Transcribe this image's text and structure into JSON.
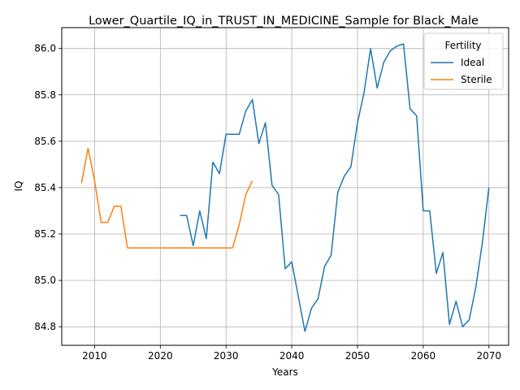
{
  "chart_data": {
    "type": "line",
    "title": "Lower_Quartile_IQ_in_TRUST_IN_MEDICINE_Sample for Black_Male",
    "xlabel": "Years",
    "ylabel": "IQ",
    "xlim": [
      2005,
      2073
    ],
    "ylim": [
      84.72,
      86.09
    ],
    "xticks": [
      2010,
      2020,
      2030,
      2040,
      2050,
      2060,
      2070
    ],
    "yticks": [
      84.8,
      85.0,
      85.2,
      85.4,
      85.6,
      85.8,
      86.0
    ],
    "xtick_labels": [
      "2010",
      "2020",
      "2030",
      "2040",
      "2050",
      "2060",
      "2070"
    ],
    "ytick_labels": [
      "84.8",
      "85.0",
      "85.2",
      "85.4",
      "85.6",
      "85.8",
      "86.0"
    ],
    "grid": true,
    "legend": {
      "title": "Fertility",
      "placement": "top-right"
    },
    "series": [
      {
        "name": "Ideal",
        "color": "#1f77b4",
        "x": [
          2023,
          2024,
          2025,
          2026,
          2027,
          2028,
          2029,
          2030,
          2031,
          2032,
          2033,
          2034,
          2035,
          2036,
          2037,
          2038,
          2039,
          2040,
          2041,
          2042,
          2043,
          2044,
          2045,
          2046,
          2047,
          2048,
          2049,
          2050,
          2051,
          2052,
          2053,
          2054,
          2055,
          2056,
          2057,
          2058,
          2059,
          2060,
          2061,
          2062,
          2063,
          2064,
          2065,
          2066,
          2067,
          2068,
          2069,
          2070
        ],
        "y": [
          85.28,
          85.28,
          85.15,
          85.3,
          85.18,
          85.51,
          85.46,
          85.63,
          85.63,
          85.63,
          85.73,
          85.78,
          85.59,
          85.68,
          85.41,
          85.37,
          85.05,
          85.08,
          84.93,
          84.78,
          84.88,
          84.92,
          85.06,
          85.11,
          85.38,
          85.45,
          85.49,
          85.68,
          85.81,
          86.0,
          85.83,
          85.94,
          85.99,
          86.01,
          86.02,
          85.74,
          85.71,
          85.3,
          85.3,
          85.03,
          85.12,
          84.81,
          84.91,
          84.8,
          84.83,
          84.97,
          85.16,
          85.4
        ]
      },
      {
        "name": "Sterile",
        "color": "#ff7f0e",
        "x": [
          2008,
          2009,
          2010,
          2011,
          2012,
          2013,
          2014,
          2015,
          2016,
          2017,
          2018,
          2019,
          2020,
          2021,
          2022,
          2023,
          2024,
          2025,
          2026,
          2027,
          2028,
          2029,
          2030,
          2031,
          2032,
          2033,
          2034
        ],
        "y": [
          85.42,
          85.57,
          85.43,
          85.25,
          85.25,
          85.32,
          85.32,
          85.14,
          85.14,
          85.14,
          85.14,
          85.14,
          85.14,
          85.14,
          85.14,
          85.14,
          85.14,
          85.14,
          85.14,
          85.14,
          85.14,
          85.14,
          85.14,
          85.14,
          85.24,
          85.37,
          85.43
        ]
      }
    ]
  }
}
